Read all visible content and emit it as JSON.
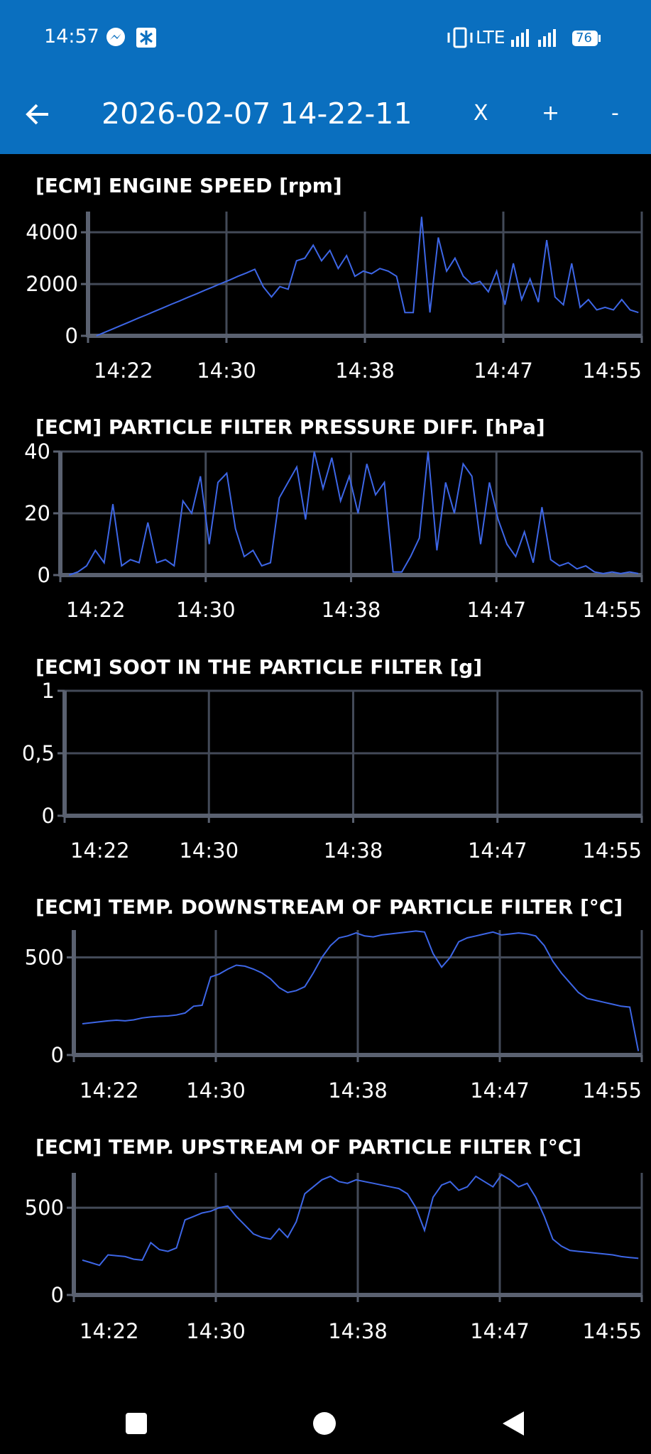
{
  "status_bar": {
    "time": "14:57",
    "network": "LTE",
    "battery": "76"
  },
  "app_bar": {
    "title": "2026-02-07 14-22-11",
    "buttons": [
      "X",
      "+",
      "-"
    ]
  },
  "chart_data": [
    {
      "type": "line",
      "title": "[ECM] ENGINE SPEED [rpm]",
      "x": [
        862.5,
        863,
        863.5,
        864,
        864.5,
        865,
        865.5,
        866,
        866.5,
        867,
        867.5,
        868,
        868.5,
        869,
        869.5,
        870,
        870.5,
        871,
        871.5,
        872,
        872.5,
        873,
        873.5,
        874,
        874.5,
        875,
        875.5,
        876,
        876.5,
        877,
        877.5,
        878,
        878.5,
        879,
        879.5,
        880,
        880.5,
        881,
        881.5,
        882,
        882.5,
        883,
        883.5,
        884,
        884.5,
        885,
        885.5,
        886,
        886.5,
        887,
        887.5,
        888,
        888.5,
        889,
        889.5,
        890,
        890.5,
        891,
        891.5,
        892,
        892.5,
        893,
        893.5,
        894,
        894.5,
        895
      ],
      "series": [
        {
          "color": "#3d66e6",
          "values": [
            0,
            135,
            270,
            405,
            540,
            680,
            810,
            950,
            1080,
            1220,
            1350,
            1490,
            1620,
            1760,
            1890,
            2030,
            2160,
            2300,
            2430,
            2570,
            1900,
            1500,
            1900,
            1800,
            2900,
            3000,
            3500,
            2900,
            3300,
            2600,
            3100,
            2300,
            2500,
            2400,
            2600,
            2500,
            2300,
            900,
            900,
            4600,
            900,
            3800,
            2500,
            3000,
            2300,
            2000,
            2100,
            1700,
            2500,
            1200,
            2800,
            1400,
            2200,
            1300,
            3700,
            1500,
            1200,
            2800,
            1100,
            1400,
            1000,
            1100,
            1000,
            1400,
            1000,
            900
          ]
        }
      ],
      "xlim": [
        862,
        895.2
      ],
      "xticks": [
        {
          "value": 862,
          "label": "14:22"
        },
        {
          "value": 870.3,
          "label": "14:30"
        },
        {
          "value": 878.6,
          "label": "14:38"
        },
        {
          "value": 886.9,
          "label": "14:47"
        },
        {
          "value": 895.2,
          "label": "14:55"
        }
      ],
      "ylim": [
        0,
        4800
      ],
      "yticks": [
        0,
        2000,
        4000
      ],
      "grid": true
    },
    {
      "type": "line",
      "title": "[ECM] PARTICLE FILTER PRESSURE DIFF. [hPa]",
      "x": [
        862.5,
        863,
        863.5,
        864,
        864.5,
        865,
        865.5,
        866,
        866.5,
        867,
        867.5,
        868,
        868.5,
        869,
        869.5,
        870,
        870.5,
        871,
        871.5,
        872,
        872.5,
        873,
        873.5,
        874,
        874.5,
        875,
        875.5,
        876,
        876.5,
        877,
        877.5,
        878,
        878.5,
        879,
        879.5,
        880,
        880.5,
        881,
        881.5,
        882,
        882.5,
        883,
        883.5,
        884,
        884.5,
        885,
        885.5,
        886,
        886.5,
        887,
        887.5,
        888,
        888.5,
        889,
        889.5,
        890,
        890.5,
        891,
        891.5,
        892,
        892.5,
        893,
        893.5,
        894,
        894.5,
        895
      ],
      "series": [
        {
          "color": "#3d66e6",
          "values": [
            0,
            1,
            3,
            8,
            4,
            23,
            3,
            5,
            4,
            17,
            4,
            5,
            3,
            24,
            20,
            32,
            10,
            30,
            33,
            15,
            6,
            8,
            3,
            4,
            25,
            30,
            35,
            18,
            40,
            28,
            38,
            24,
            32,
            20,
            36,
            26,
            30,
            1,
            1,
            6,
            12,
            40,
            8,
            30,
            20,
            36,
            32,
            10,
            30,
            18,
            10,
            6,
            14,
            4,
            22,
            5,
            3,
            4,
            2,
            3,
            1,
            0.5,
            1,
            0.5,
            1,
            0.5
          ]
        }
      ],
      "xlim": [
        862,
        895.2
      ],
      "xticks": [
        {
          "value": 862,
          "label": "14:22"
        },
        {
          "value": 870.3,
          "label": "14:30"
        },
        {
          "value": 878.6,
          "label": "14:38"
        },
        {
          "value": 886.9,
          "label": "14:47"
        },
        {
          "value": 895.2,
          "label": "14:55"
        }
      ],
      "ylim": [
        0,
        40
      ],
      "yticks": [
        0,
        20,
        40
      ],
      "grid": true
    },
    {
      "type": "line",
      "title": "[ECM] SOOT IN THE PARTICLE FILTER [g]",
      "xlim": [
        862,
        895.2
      ],
      "xticks": [
        {
          "value": 862,
          "label": "14:22"
        },
        {
          "value": 870.3,
          "label": "14:30"
        },
        {
          "value": 878.6,
          "label": "14:38"
        },
        {
          "value": 886.9,
          "label": "14:47"
        },
        {
          "value": 895.2,
          "label": "14:55"
        }
      ],
      "ylim": [
        0,
        1
      ],
      "yticks": [
        0,
        {
          "value": 0.5,
          "label": "0,5"
        },
        1
      ],
      "grid": true
    },
    {
      "type": "line",
      "title": "[ECM] TEMP. DOWNSTREAM OF PARTICLE FILTER [°C]",
      "x": [
        862.5,
        863,
        863.5,
        864,
        864.5,
        865,
        865.5,
        866,
        866.5,
        867,
        867.5,
        868,
        868.5,
        869,
        869.5,
        870,
        870.5,
        871,
        871.5,
        872,
        872.5,
        873,
        873.5,
        874,
        874.5,
        875,
        875.5,
        876,
        876.5,
        877,
        877.5,
        878,
        878.5,
        879,
        879.5,
        880,
        880.5,
        881,
        881.5,
        882,
        882.5,
        883,
        883.5,
        884,
        884.5,
        885,
        885.5,
        886,
        886.5,
        887,
        887.5,
        888,
        888.5,
        889,
        889.5,
        890,
        890.5,
        891,
        891.5,
        892,
        892.5,
        893,
        893.5,
        894,
        894.5,
        895
      ],
      "series": [
        {
          "color": "#3d66e6",
          "values": [
            160,
            165,
            170,
            175,
            178,
            175,
            180,
            190,
            195,
            198,
            200,
            205,
            215,
            250,
            255,
            400,
            415,
            440,
            460,
            455,
            440,
            420,
            390,
            345,
            320,
            330,
            350,
            420,
            500,
            560,
            600,
            610,
            625,
            610,
            605,
            615,
            620,
            625,
            630,
            635,
            630,
            520,
            450,
            500,
            580,
            600,
            610,
            620,
            630,
            615,
            620,
            625,
            620,
            610,
            560,
            480,
            420,
            370,
            320,
            290,
            280,
            270,
            260,
            250,
            245,
            20
          ]
        }
      ],
      "xlim": [
        862,
        895.2
      ],
      "xticks": [
        {
          "value": 862,
          "label": "14:22"
        },
        {
          "value": 870.3,
          "label": "14:30"
        },
        {
          "value": 878.6,
          "label": "14:38"
        },
        {
          "value": 886.9,
          "label": "14:47"
        },
        {
          "value": 895.2,
          "label": "14:55"
        }
      ],
      "ylim": [
        0,
        640
      ],
      "yticks": [
        0,
        500
      ],
      "grid": true
    },
    {
      "type": "line",
      "title": "[ECM] TEMP. UPSTREAM OF PARTICLE FILTER [°C]",
      "x": [
        862.5,
        863,
        863.5,
        864,
        864.5,
        865,
        865.5,
        866,
        866.5,
        867,
        867.5,
        868,
        868.5,
        869,
        869.5,
        870,
        870.5,
        871,
        871.5,
        872,
        872.5,
        873,
        873.5,
        874,
        874.5,
        875,
        875.5,
        876,
        876.5,
        877,
        877.5,
        878,
        878.5,
        879,
        879.5,
        880,
        880.5,
        881,
        881.5,
        882,
        882.5,
        883,
        883.5,
        884,
        884.5,
        885,
        885.5,
        886,
        886.5,
        887,
        887.5,
        888,
        888.5,
        889,
        889.5,
        890,
        890.5,
        891,
        891.5,
        892,
        892.5,
        893,
        893.5,
        894,
        894.5,
        895
      ],
      "series": [
        {
          "color": "#3d66e6",
          "values": [
            200,
            185,
            170,
            230,
            225,
            220,
            205,
            200,
            300,
            260,
            250,
            270,
            430,
            450,
            470,
            480,
            500,
            510,
            450,
            400,
            350,
            330,
            320,
            380,
            330,
            420,
            580,
            620,
            660,
            680,
            650,
            640,
            660,
            650,
            640,
            630,
            620,
            610,
            580,
            500,
            370,
            560,
            630,
            650,
            600,
            620,
            680,
            650,
            620,
            690,
            660,
            620,
            640,
            560,
            450,
            320,
            280,
            255,
            250,
            245,
            240,
            235,
            230,
            220,
            215,
            210
          ]
        }
      ],
      "xlim": [
        862,
        895.2
      ],
      "xticks": [
        {
          "value": 862,
          "label": "14:22"
        },
        {
          "value": 870.3,
          "label": "14:30"
        },
        {
          "value": 878.6,
          "label": "14:38"
        },
        {
          "value": 886.9,
          "label": "14:47"
        },
        {
          "value": 895.2,
          "label": "14:55"
        }
      ],
      "ylim": [
        0,
        700
      ],
      "yticks": [
        0,
        500
      ],
      "grid": true
    }
  ]
}
